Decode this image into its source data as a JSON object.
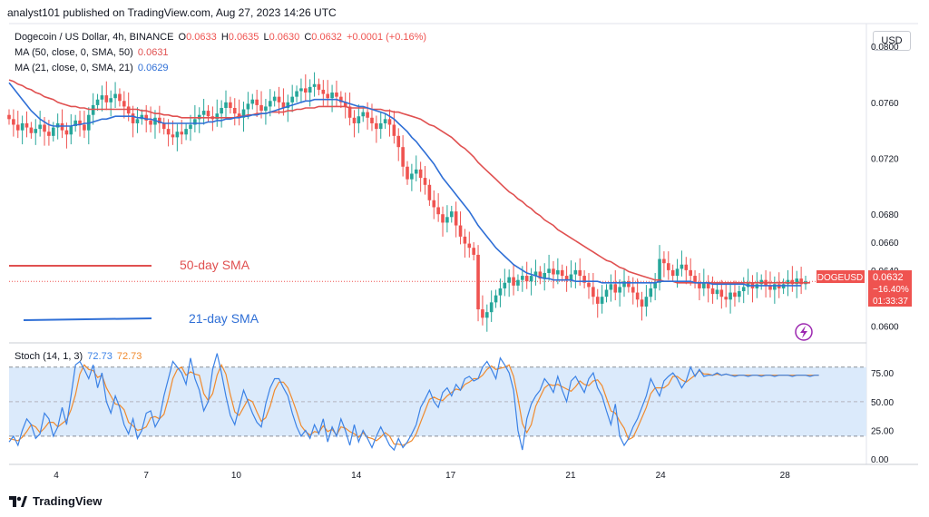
{
  "header": {
    "publish_line": "analyst101 published on TradingView.com, Aug 27, 2023 14:26 UTC"
  },
  "currency_button": "USD",
  "legend": {
    "symbol": "Dogecoin / US Dollar, 4h, BINANCE",
    "ohlc": [
      {
        "label": "O",
        "value": "0.0633"
      },
      {
        "label": "H",
        "value": "0.0635"
      },
      {
        "label": "L",
        "value": "0.0630"
      },
      {
        "label": "C",
        "value": "0.0632"
      }
    ],
    "change": "+0.0001 (+0.16%)",
    "ma50_label": "MA (50, close, 0, SMA, 50)",
    "ma50_value": "0.0631",
    "ma21_label": "MA (21, close, 0, SMA, 21)",
    "ma21_value": "0.0629",
    "stoch_label": "Stoch (14, 1, 3)",
    "stoch_k": "72.73",
    "stoch_d": "72.73"
  },
  "annotations": {
    "sma50": "50-day SMA",
    "sma21": "21-day SMA"
  },
  "price_tag": {
    "symbol": "DOGEUSD",
    "price": "0.0632",
    "change_pct": "−16.40%",
    "countdown": "01:33:37"
  },
  "footer": {
    "brand": "TradingView"
  },
  "colors": {
    "up": "#26a69a",
    "down": "#ef5350",
    "sma50": "#e05050",
    "sma21": "#2f6fd6",
    "stoch_k": "#3b82e6",
    "stoch_d": "#f08a2d",
    "band": "#dbeafb"
  },
  "chart_data": [
    {
      "type": "candlestick",
      "title": "Dogecoin / US Dollar, 4h, BINANCE",
      "x_ticks": [
        "4",
        "7",
        "10",
        "14",
        "17",
        "21",
        "24",
        "28"
      ],
      "y_ticks": [
        "0.0800",
        "0.0760",
        "0.0720",
        "0.0680",
        "0.0660",
        "0.0640",
        "0.0600"
      ],
      "ylim": [
        0.059,
        0.0815
      ],
      "close": [
        0.0748,
        0.0744,
        0.074,
        0.0745,
        0.0742,
        0.0738,
        0.0741,
        0.0744,
        0.0739,
        0.0736,
        0.0742,
        0.0745,
        0.074,
        0.0737,
        0.0743,
        0.0747,
        0.0744,
        0.074,
        0.0751,
        0.0758,
        0.0762,
        0.0765,
        0.076,
        0.0763,
        0.0766,
        0.0761,
        0.0757,
        0.0752,
        0.0745,
        0.0748,
        0.0751,
        0.0747,
        0.0744,
        0.0749,
        0.0745,
        0.0741,
        0.0737,
        0.0735,
        0.0739,
        0.0737,
        0.0741,
        0.0744,
        0.0748,
        0.0751,
        0.0754,
        0.075,
        0.0748,
        0.0752,
        0.0756,
        0.076,
        0.0756,
        0.0752,
        0.0749,
        0.0755,
        0.0759,
        0.0762,
        0.0758,
        0.0754,
        0.0757,
        0.0761,
        0.0764,
        0.076,
        0.0756,
        0.076,
        0.0764,
        0.0768,
        0.077,
        0.0767,
        0.0771,
        0.0773,
        0.0769,
        0.0766,
        0.0763,
        0.0767,
        0.0764,
        0.076,
        0.0757,
        0.0749,
        0.0745,
        0.075,
        0.0753,
        0.0749,
        0.0745,
        0.0741,
        0.0745,
        0.0748,
        0.0744,
        0.0736,
        0.0728,
        0.0714,
        0.0705,
        0.0709,
        0.0712,
        0.0706,
        0.0701,
        0.069,
        0.0685,
        0.068,
        0.0674,
        0.0678,
        0.0682,
        0.0672,
        0.0664,
        0.0659,
        0.0656,
        0.0651,
        0.0612,
        0.0606,
        0.061,
        0.0617,
        0.0622,
        0.0627,
        0.0631,
        0.0635,
        0.0629,
        0.0633,
        0.0636,
        0.0632,
        0.0636,
        0.0639,
        0.0634,
        0.0638,
        0.0641,
        0.0637,
        0.064,
        0.0636,
        0.0633,
        0.0637,
        0.064,
        0.0636,
        0.0631,
        0.0628,
        0.0621,
        0.0616,
        0.0621,
        0.0626,
        0.063,
        0.0624,
        0.0628,
        0.0632,
        0.0628,
        0.0624,
        0.0619,
        0.0614,
        0.0621,
        0.0627,
        0.0631,
        0.0648,
        0.0645,
        0.064,
        0.0636,
        0.0641,
        0.0644,
        0.064,
        0.0636,
        0.0631,
        0.0627,
        0.0631,
        0.0627,
        0.0623,
        0.0626,
        0.0621,
        0.0619,
        0.0624,
        0.0621,
        0.0625,
        0.0628,
        0.0631,
        0.0627,
        0.063,
        0.0633,
        0.0629,
        0.0626,
        0.063,
        0.0627,
        0.063,
        0.0633,
        0.063,
        0.0634,
        0.063,
        0.0632
      ],
      "series": [
        {
          "name": "MA (50, close, 0, SMA, 50)",
          "values": [
            0.0776,
            0.0775,
            0.0773,
            0.0772,
            0.077,
            0.0769,
            0.0767,
            0.0766,
            0.0764,
            0.0763,
            0.0762,
            0.076,
            0.0759,
            0.0758,
            0.0757,
            0.0757,
            0.0756,
            0.0756,
            0.0755,
            0.0755,
            0.0755,
            0.0755,
            0.0755,
            0.0755,
            0.0755,
            0.0755,
            0.0755,
            0.0755,
            0.0755,
            0.0755,
            0.0754,
            0.0754,
            0.0753,
            0.0752,
            0.0752,
            0.0751,
            0.0751,
            0.075,
            0.075,
            0.0749,
            0.0749,
            0.0749,
            0.0749,
            0.0749,
            0.0749,
            0.0749,
            0.0749,
            0.0749,
            0.0749,
            0.0749,
            0.0749,
            0.0749,
            0.075,
            0.075,
            0.0751,
            0.0751,
            0.0752,
            0.0752,
            0.0752,
            0.0753,
            0.0753,
            0.0753,
            0.0753,
            0.0754,
            0.0754,
            0.0755,
            0.0755,
            0.0756,
            0.0756,
            0.0756,
            0.0757,
            0.0757,
            0.0757,
            0.0757,
            0.0757,
            0.0757,
            0.0757,
            0.0756,
            0.0756,
            0.0756,
            0.0756,
            0.0756,
            0.0755,
            0.0755,
            0.0755,
            0.0754,
            0.0754,
            0.0753,
            0.0753,
            0.0752,
            0.0751,
            0.075,
            0.0749,
            0.0748,
            0.0746,
            0.0744,
            0.0743,
            0.0741,
            0.0739,
            0.0737,
            0.0735,
            0.0732,
            0.0729,
            0.0727,
            0.0724,
            0.0721,
            0.0717,
            0.0714,
            0.0711,
            0.0708,
            0.0705,
            0.0702,
            0.0699,
            0.0696,
            0.0694,
            0.0691,
            0.0689,
            0.0686,
            0.0684,
            0.0681,
            0.0679,
            0.0676,
            0.0674,
            0.0672,
            0.0669,
            0.0667,
            0.0665,
            0.0663,
            0.0661,
            0.0659,
            0.0657,
            0.0655,
            0.0653,
            0.0651,
            0.0649,
            0.0647,
            0.0646,
            0.0644,
            0.0642,
            0.0641,
            0.0639,
            0.0638,
            0.0637,
            0.0636,
            0.0635,
            0.0634,
            0.0633,
            0.0633,
            0.0632,
            0.0632,
            0.0632,
            0.0631,
            0.0631,
            0.0631,
            0.0631,
            0.0631,
            0.0631,
            0.0631,
            0.0631,
            0.0631,
            0.0631,
            0.0631,
            0.0631,
            0.0631,
            0.0631,
            0.0631,
            0.0631,
            0.0631,
            0.0631,
            0.0631,
            0.0631,
            0.0631,
            0.0631,
            0.0631,
            0.0631,
            0.0631,
            0.0631,
            0.0631,
            0.0631,
            0.0631,
            0.0631,
            0.0631
          ]
        },
        {
          "name": "MA (21, close, 0, SMA, 21)",
          "values": [
            0.0774,
            0.077,
            0.0766,
            0.0762,
            0.0758,
            0.0754,
            0.0751,
            0.0748,
            0.0746,
            0.0744,
            0.0743,
            0.0743,
            0.0743,
            0.0743,
            0.0743,
            0.0744,
            0.0744,
            0.0745,
            0.0745,
            0.0746,
            0.0747,
            0.0748,
            0.0748,
            0.0749,
            0.075,
            0.075,
            0.075,
            0.075,
            0.075,
            0.0749,
            0.0749,
            0.0748,
            0.0748,
            0.0747,
            0.0746,
            0.0745,
            0.0745,
            0.0745,
            0.0745,
            0.0745,
            0.0745,
            0.0745,
            0.0745,
            0.0745,
            0.0745,
            0.0746,
            0.0746,
            0.0747,
            0.0747,
            0.0748,
            0.0748,
            0.0749,
            0.0749,
            0.075,
            0.075,
            0.0751,
            0.0751,
            0.0752,
            0.0752,
            0.0753,
            0.0754,
            0.0755,
            0.0756,
            0.0757,
            0.0758,
            0.0759,
            0.076,
            0.0761,
            0.0761,
            0.0762,
            0.0762,
            0.0762,
            0.0762,
            0.0762,
            0.0762,
            0.0761,
            0.076,
            0.0759,
            0.0758,
            0.0757,
            0.0757,
            0.0756,
            0.0755,
            0.0754,
            0.0753,
            0.0752,
            0.075,
            0.0748,
            0.0745,
            0.0742,
            0.0739,
            0.0735,
            0.0732,
            0.0728,
            0.0724,
            0.072,
            0.0716,
            0.0711,
            0.0706,
            0.0702,
            0.0698,
            0.0694,
            0.069,
            0.0686,
            0.0682,
            0.0677,
            0.0672,
            0.0668,
            0.0664,
            0.066,
            0.0656,
            0.0653,
            0.065,
            0.0647,
            0.0644,
            0.0642,
            0.064,
            0.0638,
            0.0637,
            0.0636,
            0.0635,
            0.0634,
            0.0634,
            0.0633,
            0.0633,
            0.0633,
            0.0633,
            0.0633,
            0.0632,
            0.0632,
            0.0632,
            0.0632,
            0.0632,
            0.0632,
            0.0631,
            0.0631,
            0.0631,
            0.0631,
            0.0631,
            0.0631,
            0.0631,
            0.0631,
            0.0631,
            0.0631,
            0.0631,
            0.0631,
            0.0631,
            0.0632,
            0.0632,
            0.0632,
            0.0632,
            0.0632,
            0.0632,
            0.0632,
            0.0632,
            0.0631,
            0.0631,
            0.0631,
            0.0631,
            0.063,
            0.063,
            0.063,
            0.063,
            0.063,
            0.063,
            0.063,
            0.063,
            0.0629,
            0.0629,
            0.0629,
            0.0629,
            0.0629,
            0.0629,
            0.0629,
            0.0629,
            0.0629,
            0.0629,
            0.0629,
            0.0629,
            0.0629
          ]
        }
      ]
    },
    {
      "type": "line",
      "title": "Stoch (14, 1, 3)",
      "y_ticks": [
        "75.00",
        "50.00",
        "25.00",
        "0.00"
      ],
      "ylim": [
        -3,
        98
      ],
      "band": [
        20,
        80
      ],
      "series": [
        {
          "name": "%K",
          "values": [
            15,
            20,
            12,
            25,
            35,
            30,
            18,
            22,
            40,
            35,
            20,
            28,
            45,
            30,
            55,
            82,
            85,
            78,
            70,
            82,
            62,
            75,
            50,
            40,
            55,
            45,
            30,
            22,
            35,
            18,
            25,
            40,
            42,
            28,
            35,
            55,
            70,
            85,
            80,
            75,
            65,
            88,
            70,
            60,
            42,
            50,
            78,
            92,
            75,
            55,
            38,
            30,
            45,
            60,
            50,
            40,
            32,
            28,
            48,
            62,
            70,
            70,
            62,
            55,
            40,
            28,
            20,
            25,
            18,
            30,
            22,
            35,
            15,
            28,
            20,
            35,
            25,
            12,
            30,
            15,
            25,
            18,
            10,
            20,
            28,
            20,
            12,
            8,
            18,
            10,
            15,
            22,
            30,
            45,
            52,
            60,
            50,
            45,
            58,
            62,
            55,
            65,
            60,
            70,
            72,
            68,
            70,
            80,
            85,
            78,
            70,
            88,
            82,
            75,
            60,
            25,
            8,
            35,
            48,
            55,
            60,
            70,
            65,
            58,
            72,
            60,
            50,
            68,
            72,
            65,
            58,
            70,
            75,
            62,
            55,
            42,
            30,
            48,
            20,
            12,
            18,
            28,
            35,
            45,
            55,
            70,
            62,
            55,
            68,
            72,
            75,
            70,
            62,
            68,
            80,
            72,
            78,
            72,
            73,
            73,
            75,
            73,
            74,
            73,
            72,
            73,
            73,
            72,
            73,
            73,
            72,
            73,
            73,
            72,
            73,
            73,
            73,
            72,
            73,
            73,
            73,
            72,
            73,
            73
          ]
        },
        {
          "name": "%D",
          "values": [
            18,
            17,
            16,
            19,
            24,
            30,
            28,
            23,
            27,
            32,
            32,
            28,
            31,
            34,
            43,
            56,
            74,
            82,
            78,
            77,
            71,
            73,
            62,
            55,
            48,
            47,
            43,
            32,
            29,
            25,
            26,
            28,
            36,
            37,
            35,
            39,
            53,
            70,
            78,
            80,
            73,
            76,
            74,
            73,
            57,
            51,
            57,
            73,
            82,
            74,
            56,
            41,
            38,
            45,
            52,
            50,
            41,
            33,
            36,
            46,
            60,
            67,
            67,
            62,
            52,
            41,
            29,
            24,
            21,
            24,
            23,
            29,
            24,
            26,
            21,
            28,
            27,
            24,
            22,
            19,
            23,
            19,
            18,
            16,
            19,
            23,
            20,
            13,
            13,
            12,
            14,
            16,
            22,
            32,
            42,
            52,
            54,
            52,
            51,
            55,
            58,
            61,
            60,
            65,
            67,
            70,
            70,
            73,
            78,
            81,
            78,
            79,
            80,
            82,
            72,
            53,
            31,
            23,
            30,
            46,
            54,
            62,
            65,
            64,
            65,
            63,
            61,
            59,
            63,
            68,
            65,
            64,
            68,
            69,
            64,
            53,
            42,
            40,
            33,
            27,
            17,
            19,
            27,
            36,
            45,
            57,
            62,
            62,
            62,
            65,
            72,
            72,
            69,
            67,
            70,
            73,
            77,
            74,
            74,
            73,
            74,
            73,
            74,
            73,
            73,
            73,
            73,
            73,
            73,
            73,
            73,
            73,
            73,
            73,
            73,
            73,
            73,
            73,
            73,
            73,
            73,
            73,
            73,
            73
          ]
        }
      ]
    }
  ]
}
